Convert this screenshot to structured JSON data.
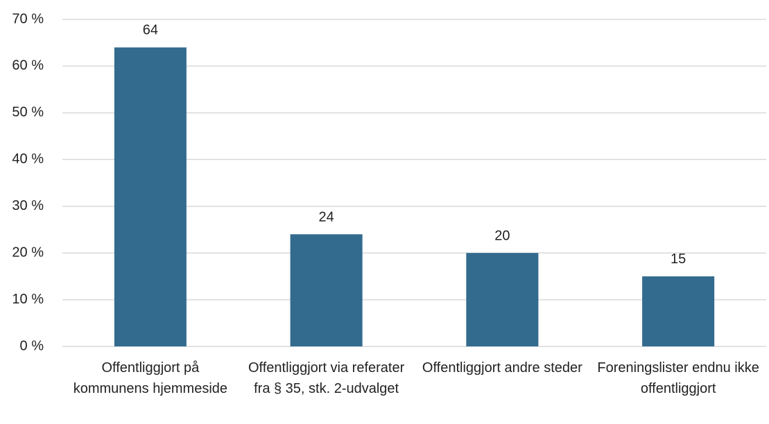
{
  "chart_data": {
    "type": "bar",
    "categories": [
      "Offentliggjort på kommunens hjemmeside",
      "Offentliggjort via referater fra § 35, stk. 2-udvalget",
      "Offentliggjort andre steder",
      "Foreningslister endnu ikke offentliggjort"
    ],
    "values": [
      64,
      24,
      20,
      15
    ],
    "color": "#336b8f",
    "ylim": [
      0,
      70
    ],
    "yticks": [
      {
        "value": 0,
        "label": "0 %"
      },
      {
        "value": 10,
        "label": "10 %"
      },
      {
        "value": 20,
        "label": "20 %"
      },
      {
        "value": 30,
        "label": "30 %"
      },
      {
        "value": 40,
        "label": "40 %"
      },
      {
        "value": 50,
        "label": "50 %"
      },
      {
        "value": 60,
        "label": "60 %"
      },
      {
        "value": 70,
        "label": "70 %"
      }
    ],
    "grid": true
  }
}
